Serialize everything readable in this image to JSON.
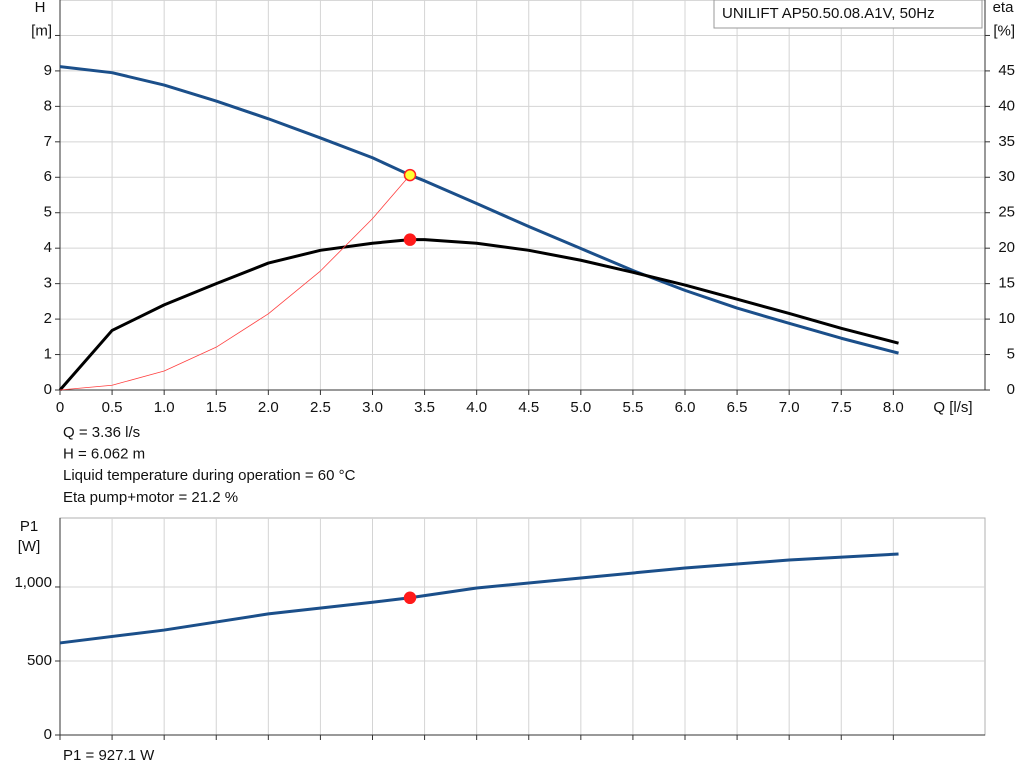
{
  "chart_data": [
    {
      "type": "line",
      "title": "UNILIFT AP50.50.08.A1V, 50Hz",
      "ylabel": "H",
      "y2label": "eta",
      "xlabel": "Q [l/s]",
      "xlim": [
        0,
        8.88
      ],
      "ylim": [
        0,
        11
      ],
      "y2lim": [
        0,
        55
      ],
      "xticks": [
        0,
        0.5,
        {
          "value": 1,
          "label": "1.0"
        },
        1.5,
        {
          "value": 2,
          "label": "2.0"
        },
        2.5,
        {
          "value": 3,
          "label": "3.0"
        },
        3.5,
        {
          "value": 4,
          "label": "4.0"
        },
        4.5,
        {
          "value": 5,
          "label": "5.0"
        },
        5.5,
        {
          "value": 6,
          "label": "6.0"
        },
        6.5,
        {
          "value": 7,
          "label": "7.0"
        },
        7.5,
        {
          "value": 8,
          "label": "8.0"
        }
      ],
      "yticks": [
        0,
        1,
        2,
        3,
        4,
        5,
        6,
        7,
        8,
        9,
        {
          "value": 10,
          "label": "[m]"
        }
      ],
      "y2ticks": [
        0,
        5,
        10,
        15,
        20,
        25,
        30,
        35,
        40,
        45,
        {
          "value": 50,
          "label": "[%]"
        }
      ],
      "grid": true,
      "series": [
        {
          "color": "#1b4f8a",
          "width": 3,
          "x": [
            0,
            0.5,
            1,
            1.5,
            2,
            2.5,
            3,
            3.36,
            3.5,
            4,
            4.5,
            5,
            5.5,
            6,
            6.5,
            7,
            7.5,
            8.05
          ],
          "values": [
            9.12,
            8.95,
            8.6,
            8.15,
            7.65,
            7.11,
            6.55,
            6.062,
            5.9,
            5.26,
            4.61,
            3.99,
            3.37,
            2.81,
            2.31,
            1.88,
            1.46,
            1.04
          ]
        },
        {
          "color": "#000000",
          "width": 3,
          "axis": "y2",
          "x": [
            0,
            0.5,
            1,
            1.5,
            2,
            2.5,
            3,
            3.36,
            3.5,
            4,
            4.5,
            5,
            5.5,
            6,
            6.5,
            7,
            7.5,
            8.05
          ],
          "values": [
            0,
            8.4,
            12,
            15,
            17.9,
            19.7,
            20.7,
            21.2,
            21.2,
            20.7,
            19.7,
            18.3,
            16.6,
            14.8,
            12.8,
            10.8,
            8.7,
            6.6
          ]
        },
        {
          "color": "#ff4040",
          "width": 0.8,
          "x": [
            0,
            0.5,
            1,
            1.5,
            2,
            2.5,
            3,
            3.36
          ],
          "values": [
            0,
            0.134,
            0.537,
            1.208,
            2.148,
            3.356,
            4.833,
            6.062
          ]
        }
      ],
      "points": [
        {
          "x": 3.36,
          "y": 6.062,
          "color": "#ffff33",
          "edge": "#ff2020"
        },
        {
          "x": 3.36,
          "y": 21.2,
          "axis": "y2",
          "color": "#ff1a1a",
          "edge": "#ff1a1a"
        }
      ],
      "annotations": [
        "Q = 3.36 l/s",
        "H = 6.062 m",
        "Liquid temperature during operation = 60 °C",
        "Eta pump+motor = 21.2 %"
      ]
    },
    {
      "type": "line",
      "ylabel": "P1",
      "yunit": "[W]",
      "xlim": [
        0,
        8.88
      ],
      "ylim": [
        0,
        1466
      ],
      "xticks": [
        0,
        0.5,
        1,
        1.5,
        2,
        2.5,
        3,
        3.5,
        4,
        4.5,
        5,
        5.5,
        6,
        6.5,
        7,
        7.5,
        8
      ],
      "show_xtick_labels": false,
      "yticks": [
        0,
        500,
        {
          "value": 1000,
          "label": "1,000"
        }
      ],
      "grid": true,
      "series": [
        {
          "color": "#1b4f8a",
          "width": 3,
          "x": [
            0,
            1,
            2,
            3,
            3.36,
            4,
            5,
            6,
            7,
            8.05
          ],
          "values": [
            622,
            709,
            818,
            897,
            927.1,
            993,
            1061,
            1128,
            1182,
            1223
          ]
        }
      ],
      "points": [
        {
          "x": 3.36,
          "y": 927.1,
          "color": "#ff1a1a",
          "edge": "#ff1a1a"
        }
      ],
      "annotations": [
        "P1 = 927.1 W"
      ]
    }
  ]
}
